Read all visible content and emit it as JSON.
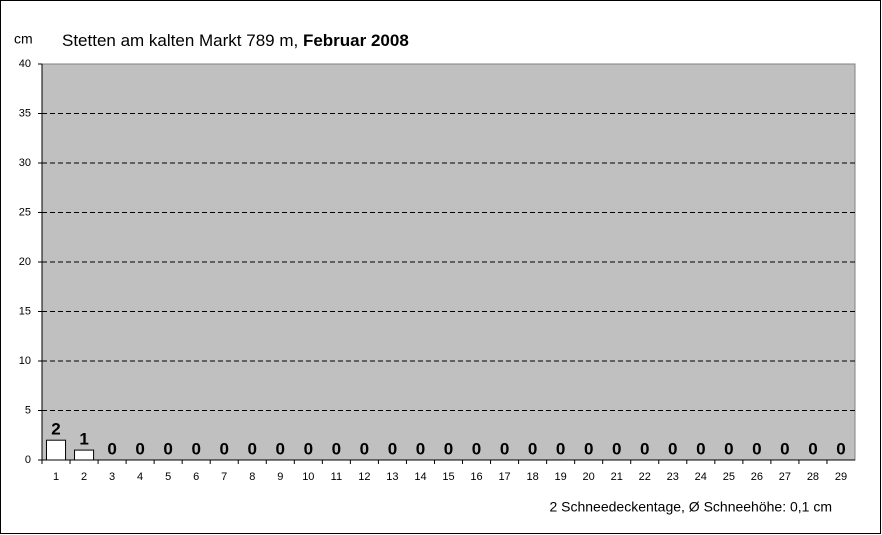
{
  "chart_data": {
    "type": "bar",
    "title": "Stetten am kalten Markt  789 m,",
    "title_bold": "Februar 2008",
    "y_label": "cm",
    "footer": "2 Schneedeckentage,  Ø Schneehöhe:  0,1 cm",
    "categories": [
      "1",
      "2",
      "3",
      "4",
      "5",
      "6",
      "7",
      "8",
      "9",
      "10",
      "11",
      "12",
      "13",
      "14",
      "15",
      "16",
      "17",
      "18",
      "19",
      "20",
      "21",
      "22",
      "23",
      "24",
      "25",
      "26",
      "27",
      "28",
      "29"
    ],
    "values": [
      2,
      1,
      0,
      0,
      0,
      0,
      0,
      0,
      0,
      0,
      0,
      0,
      0,
      0,
      0,
      0,
      0,
      0,
      0,
      0,
      0,
      0,
      0,
      0,
      0,
      0,
      0,
      0,
      0
    ],
    "color": "#ffffff",
    "ylim": [
      0,
      40
    ],
    "yticks": [
      0,
      5,
      10,
      15,
      20,
      25,
      30,
      35,
      40
    ],
    "grid": true
  }
}
